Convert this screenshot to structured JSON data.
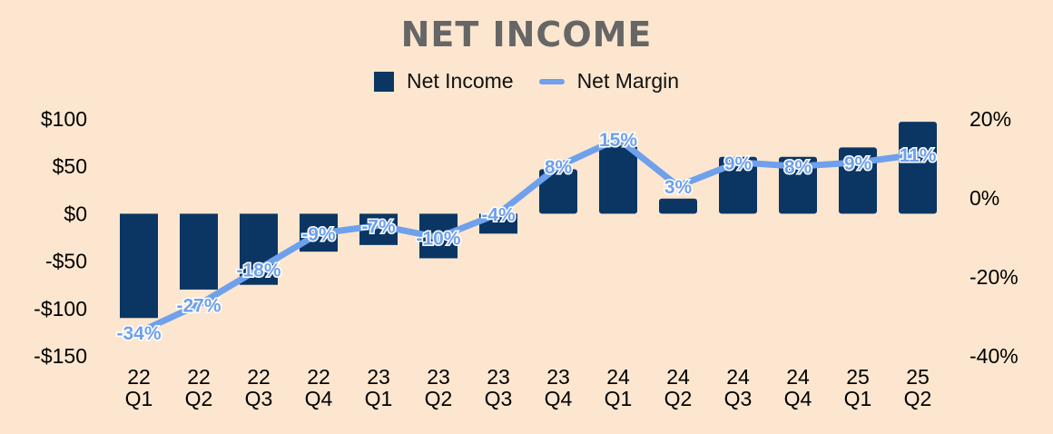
{
  "chart_data": {
    "type": "bar",
    "title": "NET INCOME",
    "categories": [
      [
        "22",
        "Q1"
      ],
      [
        "22",
        "Q2"
      ],
      [
        "22",
        "Q3"
      ],
      [
        "22",
        "Q4"
      ],
      [
        "23",
        "Q1"
      ],
      [
        "23",
        "Q2"
      ],
      [
        "23",
        "Q3"
      ],
      [
        "23",
        "Q4"
      ],
      [
        "24",
        "Q1"
      ],
      [
        "24",
        "Q2"
      ],
      [
        "24",
        "Q3"
      ],
      [
        "24",
        "Q4"
      ],
      [
        "25",
        "Q1"
      ],
      [
        "25",
        "Q2"
      ]
    ],
    "series": [
      {
        "name": "Net Income",
        "type": "bar",
        "axis": "left",
        "color": "#0b3663",
        "values": [
          -110,
          -80,
          -75,
          -40,
          -33,
          -47,
          -21,
          47,
          72,
          16,
          60,
          60,
          70,
          97
        ]
      },
      {
        "name": "Net Margin",
        "type": "line",
        "axis": "right",
        "color": "#6fa0eb",
        "values": [
          -34,
          -27,
          -18,
          -9,
          -7,
          -10,
          -4,
          8,
          15,
          3,
          9,
          8,
          9,
          11
        ],
        "labels": [
          "-34%",
          "-27%",
          "-18%",
          "-9%",
          "-7%",
          "-10%",
          "-4%",
          "8%",
          "15%",
          "3%",
          "9%",
          "8%",
          "9%",
          "11%"
        ]
      }
    ],
    "y_left": {
      "min": -150,
      "max": 100,
      "ticks": [
        100,
        50,
        0,
        -50,
        -100,
        -150
      ],
      "tick_labels": [
        "$100",
        "$50",
        "$0",
        "-$50",
        "-$100",
        "-$150"
      ]
    },
    "y_right": {
      "min": -40,
      "max": 20,
      "ticks": [
        20,
        0,
        -20,
        -40
      ],
      "tick_labels": [
        "20%",
        "0%",
        "-20%",
        "-40%"
      ]
    },
    "grid": false,
    "legend": "top-center"
  }
}
